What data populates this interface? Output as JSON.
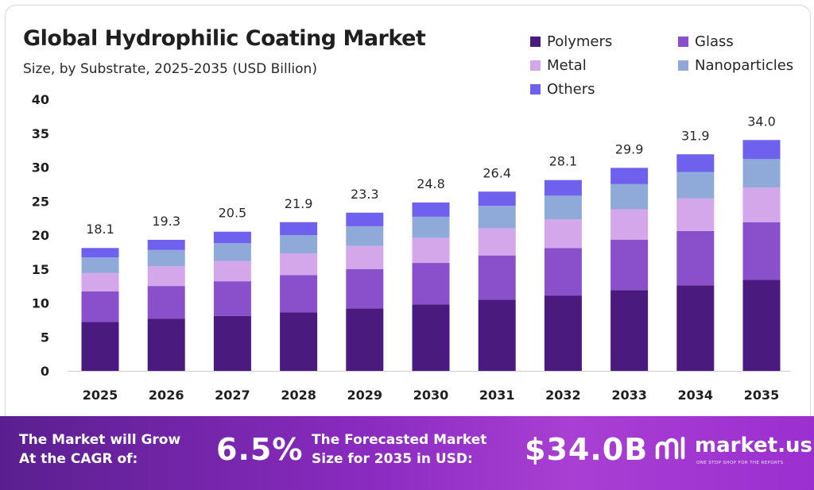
{
  "header": {
    "title": "Global Hydrophilic Coating Market",
    "subtitle": "Size, by Substrate, 2025-2035 (USD Billion)"
  },
  "legend": [
    {
      "label": "Polymers",
      "color": "#4a1a7e"
    },
    {
      "label": "Glass",
      "color": "#8a4fcb"
    },
    {
      "label": "Metal",
      "color": "#d4a6ea"
    },
    {
      "label": "Nanoparticles",
      "color": "#8fa9d8"
    },
    {
      "label": "Others",
      "color": "#7060ee"
    }
  ],
  "chart_data": {
    "type": "bar",
    "stacked": true,
    "categories": [
      "2025",
      "2026",
      "2027",
      "2028",
      "2029",
      "2030",
      "2031",
      "2032",
      "2033",
      "2034",
      "2035"
    ],
    "series": [
      {
        "name": "Polymers",
        "values": [
          7.2,
          7.7,
          8.1,
          8.6,
          9.2,
          9.8,
          10.5,
          11.1,
          11.9,
          12.6,
          13.4
        ]
      },
      {
        "name": "Glass",
        "values": [
          4.5,
          4.8,
          5.1,
          5.5,
          5.8,
          6.1,
          6.5,
          7.0,
          7.4,
          8.0,
          8.5
        ]
      },
      {
        "name": "Metal",
        "values": [
          2.7,
          2.9,
          3.0,
          3.2,
          3.4,
          3.7,
          4.0,
          4.2,
          4.5,
          4.8,
          5.1
        ]
      },
      {
        "name": "Nanoparticles",
        "values": [
          2.3,
          2.4,
          2.6,
          2.7,
          2.9,
          3.1,
          3.3,
          3.5,
          3.7,
          3.9,
          4.2
        ]
      },
      {
        "name": "Others",
        "values": [
          1.4,
          1.5,
          1.7,
          1.9,
          2.0,
          2.1,
          2.1,
          2.3,
          2.4,
          2.6,
          2.8
        ]
      }
    ],
    "totals": [
      "18.1",
      "19.3",
      "20.5",
      "21.9",
      "23.3",
      "24.8",
      "26.4",
      "28.1",
      "29.9",
      "31.9",
      "34.0"
    ],
    "yticks": [
      "0",
      "5",
      "10",
      "15",
      "20",
      "25",
      "30",
      "35",
      "40"
    ],
    "ylim": [
      0,
      40
    ],
    "grid": false,
    "legend_position": "top-right"
  },
  "banner": {
    "cagr_text": "The Market will Grow\nAt the CAGR of:",
    "cagr_value": "6.5%",
    "forecast_text": "The Forecasted Market\nSize for 2035 in USD:",
    "forecast_value": "$34.0B",
    "logo_text": "market.us",
    "logo_tagline": "ONE STOP SHOP FOR THE REPORTS"
  }
}
